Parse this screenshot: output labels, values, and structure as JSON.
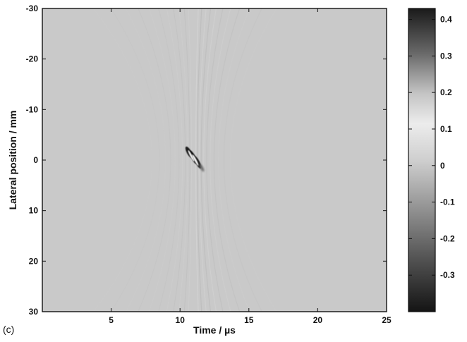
{
  "panel_label": "(c)",
  "chart_data": {
    "type": "heatmap",
    "xlabel": "Time / µs",
    "ylabel": "Lateral position / mm",
    "xlim": [
      0,
      25
    ],
    "ylim": [
      -30,
      30
    ],
    "y_axis_inverted": true,
    "x_ticks": [
      5,
      10,
      15,
      20,
      25
    ],
    "y_ticks": [
      -30,
      -20,
      -10,
      0,
      10,
      20,
      30
    ],
    "colormap": "gray (dark = high and low extremes, light = mid)",
    "colorbar": {
      "range": [
        -0.4,
        0.43
      ],
      "ticks": [
        -0.3,
        -0.2,
        -0.1,
        0,
        0.1,
        0.2,
        0.3,
        0.4
      ]
    },
    "background_value": 0,
    "features": [
      {
        "time_us": 11.0,
        "lateral_mm": 0,
        "peak_amplitude": 0.4
      },
      {
        "time_us": 11.3,
        "lateral_mm": 0,
        "peak_amplitude": -0.35
      }
    ],
    "grid": false,
    "legend": "none"
  }
}
